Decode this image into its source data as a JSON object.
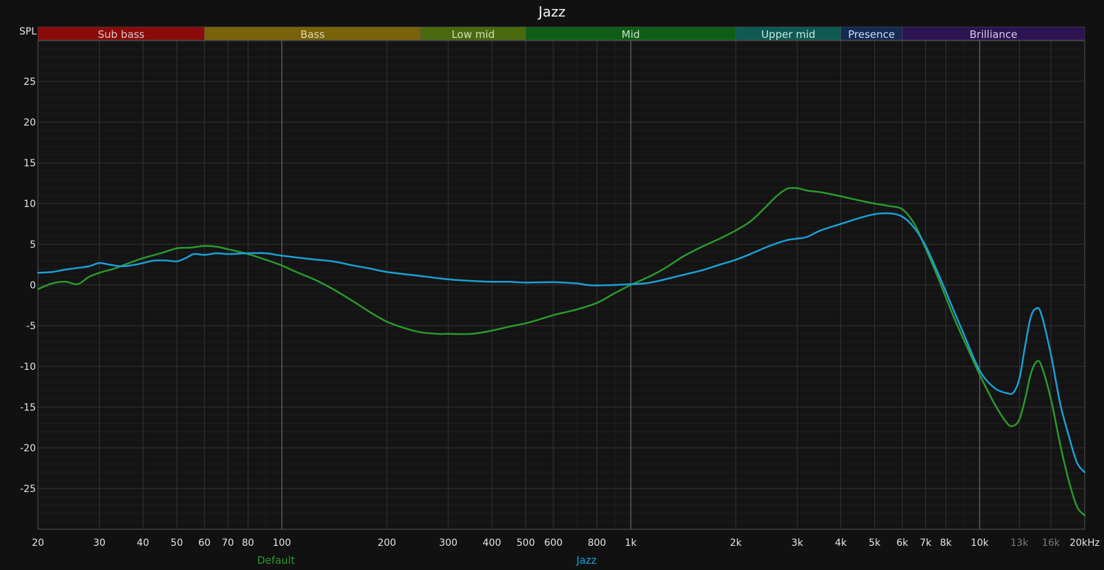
{
  "chart_data": {
    "type": "line",
    "title": "Jazz",
    "ylabel": "SPL",
    "x_unit_label": "20kHz",
    "x_scale": "log",
    "xlim": [
      20,
      20000
    ],
    "ylim": [
      -30,
      30
    ],
    "grid": true,
    "legend_placement": "bottom",
    "x_ticks": [
      {
        "value": 20,
        "label": "20"
      },
      {
        "value": 30,
        "label": "30"
      },
      {
        "value": 40,
        "label": "40"
      },
      {
        "value": 50,
        "label": "50"
      },
      {
        "value": 60,
        "label": "60"
      },
      {
        "value": 70,
        "label": "70"
      },
      {
        "value": 80,
        "label": "80"
      },
      {
        "value": 100,
        "label": "100"
      },
      {
        "value": 200,
        "label": "200"
      },
      {
        "value": 300,
        "label": "300"
      },
      {
        "value": 400,
        "label": "400"
      },
      {
        "value": 500,
        "label": "500"
      },
      {
        "value": 600,
        "label": "600"
      },
      {
        "value": 800,
        "label": "800"
      },
      {
        "value": 1000,
        "label": "1k"
      },
      {
        "value": 2000,
        "label": "2k"
      },
      {
        "value": 3000,
        "label": "3k"
      },
      {
        "value": 4000,
        "label": "4k"
      },
      {
        "value": 5000,
        "label": "5k"
      },
      {
        "value": 6000,
        "label": "6k"
      },
      {
        "value": 7000,
        "label": "7k"
      },
      {
        "value": 8000,
        "label": "8k"
      },
      {
        "value": 10000,
        "label": "10k"
      },
      {
        "value": 13000,
        "label": "13k",
        "dim": true
      },
      {
        "value": 16000,
        "label": "16k",
        "dim": true
      }
    ],
    "y_ticks": [
      25,
      20,
      15,
      10,
      5,
      0,
      -5,
      -10,
      -15,
      -20,
      -25
    ],
    "bands": [
      {
        "name": "Sub bass",
        "from": 20,
        "to": 60,
        "color": "#8b0a0a",
        "text_color": "#d8c8c8"
      },
      {
        "name": "Bass",
        "from": 60,
        "to": 250,
        "color": "#7a620a",
        "text_color": "#e0d8b0"
      },
      {
        "name": "Low mid",
        "from": 250,
        "to": 500,
        "color": "#4a6a0e",
        "text_color": "#d0e0b8"
      },
      {
        "name": "Mid",
        "from": 500,
        "to": 2000,
        "color": "#0e5e18",
        "text_color": "#c8e0c8"
      },
      {
        "name": "Upper mid",
        "from": 2000,
        "to": 4000,
        "color": "#0e5a52",
        "text_color": "#c8e8e0"
      },
      {
        "name": "Presence",
        "from": 4000,
        "to": 6000,
        "color": "#142a52",
        "text_color": "#d0dcf0"
      },
      {
        "name": "Brilliance",
        "from": 6000,
        "to": 20000,
        "color": "#2c1452",
        "text_color": "#d8d0e8"
      }
    ],
    "series": [
      {
        "name": "Default",
        "color": "#2a9a2e",
        "points": [
          [
            20,
            -0.5
          ],
          [
            22,
            0.2
          ],
          [
            24,
            0.4
          ],
          [
            26,
            0.1
          ],
          [
            28,
            1.0
          ],
          [
            30,
            1.5
          ],
          [
            33,
            2.0
          ],
          [
            36,
            2.6
          ],
          [
            40,
            3.3
          ],
          [
            45,
            3.9
          ],
          [
            50,
            4.5
          ],
          [
            55,
            4.6
          ],
          [
            60,
            4.8
          ],
          [
            65,
            4.7
          ],
          [
            70,
            4.4
          ],
          [
            80,
            3.8
          ],
          [
            90,
            3.1
          ],
          [
            100,
            2.4
          ],
          [
            110,
            1.6
          ],
          [
            125,
            0.6
          ],
          [
            140,
            -0.5
          ],
          [
            160,
            -2.0
          ],
          [
            180,
            -3.4
          ],
          [
            200,
            -4.5
          ],
          [
            225,
            -5.3
          ],
          [
            250,
            -5.8
          ],
          [
            280,
            -6.0
          ],
          [
            300,
            -6.0
          ],
          [
            350,
            -6.0
          ],
          [
            400,
            -5.6
          ],
          [
            450,
            -5.1
          ],
          [
            500,
            -4.7
          ],
          [
            550,
            -4.2
          ],
          [
            600,
            -3.7
          ],
          [
            700,
            -3.0
          ],
          [
            800,
            -2.2
          ],
          [
            900,
            -1.0
          ],
          [
            1000,
            0.0
          ],
          [
            1100,
            0.8
          ],
          [
            1200,
            1.6
          ],
          [
            1300,
            2.5
          ],
          [
            1400,
            3.4
          ],
          [
            1500,
            4.1
          ],
          [
            1600,
            4.7
          ],
          [
            1800,
            5.7
          ],
          [
            2000,
            6.7
          ],
          [
            2200,
            7.8
          ],
          [
            2400,
            9.3
          ],
          [
            2600,
            10.8
          ],
          [
            2800,
            11.8
          ],
          [
            3000,
            11.9
          ],
          [
            3200,
            11.6
          ],
          [
            3500,
            11.4
          ],
          [
            4000,
            10.9
          ],
          [
            4500,
            10.4
          ],
          [
            5000,
            10.0
          ],
          [
            5500,
            9.7
          ],
          [
            6000,
            9.3
          ],
          [
            6500,
            7.5
          ],
          [
            7000,
            4.5
          ],
          [
            7500,
            1.5
          ],
          [
            8000,
            -1.5
          ],
          [
            8500,
            -4.3
          ],
          [
            9000,
            -6.7
          ],
          [
            10000,
            -11.0
          ],
          [
            11000,
            -14.5
          ],
          [
            12000,
            -17.0
          ],
          [
            12500,
            -17.3
          ],
          [
            13000,
            -16.5
          ],
          [
            13500,
            -14.0
          ],
          [
            14000,
            -11.0
          ],
          [
            14500,
            -9.5
          ],
          [
            15000,
            -9.8
          ],
          [
            16000,
            -14.0
          ],
          [
            17000,
            -19.5
          ],
          [
            18000,
            -24.0
          ],
          [
            19000,
            -27.2
          ],
          [
            20000,
            -28.3
          ]
        ]
      },
      {
        "name": "Jazz",
        "color": "#1ba0d6",
        "points": [
          [
            20,
            1.5
          ],
          [
            22,
            1.6
          ],
          [
            24,
            1.9
          ],
          [
            26,
            2.1
          ],
          [
            28,
            2.3
          ],
          [
            30,
            2.7
          ],
          [
            32,
            2.5
          ],
          [
            35,
            2.3
          ],
          [
            38,
            2.5
          ],
          [
            40,
            2.7
          ],
          [
            43,
            3.0
          ],
          [
            47,
            3.0
          ],
          [
            50,
            2.9
          ],
          [
            53,
            3.3
          ],
          [
            56,
            3.8
          ],
          [
            60,
            3.7
          ],
          [
            65,
            3.9
          ],
          [
            70,
            3.8
          ],
          [
            80,
            3.9
          ],
          [
            90,
            3.9
          ],
          [
            100,
            3.6
          ],
          [
            120,
            3.2
          ],
          [
            140,
            2.9
          ],
          [
            160,
            2.4
          ],
          [
            180,
            2.0
          ],
          [
            200,
            1.6
          ],
          [
            250,
            1.1
          ],
          [
            300,
            0.7
          ],
          [
            350,
            0.5
          ],
          [
            400,
            0.4
          ],
          [
            450,
            0.4
          ],
          [
            500,
            0.3
          ],
          [
            600,
            0.35
          ],
          [
            700,
            0.2
          ],
          [
            750,
            0.0
          ],
          [
            800,
            -0.05
          ],
          [
            900,
            0.0
          ],
          [
            1000,
            0.1
          ],
          [
            1100,
            0.2
          ],
          [
            1200,
            0.5
          ],
          [
            1400,
            1.2
          ],
          [
            1600,
            1.8
          ],
          [
            1800,
            2.5
          ],
          [
            2000,
            3.1
          ],
          [
            2200,
            3.8
          ],
          [
            2500,
            4.8
          ],
          [
            2800,
            5.5
          ],
          [
            3000,
            5.7
          ],
          [
            3200,
            5.9
          ],
          [
            3500,
            6.7
          ],
          [
            4000,
            7.5
          ],
          [
            4500,
            8.2
          ],
          [
            5000,
            8.7
          ],
          [
            5500,
            8.8
          ],
          [
            6000,
            8.4
          ],
          [
            6500,
            7.0
          ],
          [
            7000,
            4.8
          ],
          [
            7500,
            2.0
          ],
          [
            8000,
            -0.8
          ],
          [
            8500,
            -3.5
          ],
          [
            9000,
            -6.0
          ],
          [
            10000,
            -10.5
          ],
          [
            11000,
            -12.6
          ],
          [
            12000,
            -13.3
          ],
          [
            12500,
            -13.2
          ],
          [
            13000,
            -11.5
          ],
          [
            13500,
            -7.5
          ],
          [
            14000,
            -4.0
          ],
          [
            14500,
            -2.9
          ],
          [
            15000,
            -3.5
          ],
          [
            16000,
            -8.5
          ],
          [
            17000,
            -14.5
          ],
          [
            18000,
            -18.5
          ],
          [
            19000,
            -21.8
          ],
          [
            20000,
            -23.0
          ]
        ]
      }
    ]
  }
}
